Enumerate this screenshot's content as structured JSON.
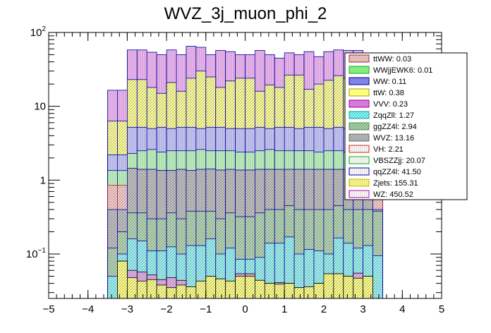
{
  "chart_data": {
    "type": "bar",
    "stacked": true,
    "title": "WVZ_3j_muon_phi_2",
    "xlabel": "",
    "ylabel": "",
    "yscale": "log",
    "xlim": [
      -5,
      5
    ],
    "ylim": [
      0.025,
      100
    ],
    "x_ticks": [
      "−5",
      "−4",
      "−3",
      "−2",
      "−1",
      "0",
      "1",
      "2",
      "3",
      "4",
      "5"
    ],
    "y_ticks": [
      {
        "value": 0.1,
        "base": "10",
        "exp": "−1"
      },
      {
        "value": 1,
        "label": "1"
      },
      {
        "value": 10,
        "label": "10"
      },
      {
        "value": 100,
        "base": "10",
        "exp": "2"
      }
    ],
    "legend_position": "top-right",
    "bin_edges": [
      -3.5,
      -3.25,
      -3.0,
      -2.75,
      -2.5,
      -2.25,
      -2.0,
      -1.75,
      -1.5,
      -1.25,
      -1.0,
      -0.75,
      -0.5,
      -0.25,
      0.0,
      0.25,
      0.5,
      0.75,
      1.0,
      1.25,
      1.5,
      1.75,
      2.0,
      2.25,
      2.5,
      2.75,
      3.0,
      3.25,
      3.5
    ],
    "stack_tops": [
      {
        "name": "Zjets",
        "values": [
          0.0,
          0.08,
          0.048,
          0.043,
          0.045,
          0.038,
          0.035,
          0.038,
          0.036,
          0.043,
          0.05,
          0.046,
          0.043,
          0.05,
          0.05,
          0.044,
          0.04,
          0.039,
          0.04,
          0.035,
          0.036,
          0.04,
          0.054,
          0.054,
          0.05,
          0.047,
          0.05,
          0.0
        ]
      },
      {
        "name": "VVV",
        "values": [
          0.0,
          0.08,
          0.06,
          0.057,
          0.052,
          0.045,
          0.048,
          0.044,
          0.036,
          0.043,
          0.05,
          0.046,
          0.043,
          0.054,
          0.054,
          0.044,
          0.04,
          0.041,
          0.04,
          0.035,
          0.036,
          0.04,
          0.054,
          0.054,
          0.05,
          0.055,
          0.05,
          0.0
        ]
      },
      {
        "name": "ZqqZll",
        "values": [
          0.05,
          0.1,
          0.16,
          0.15,
          0.11,
          0.11,
          0.125,
          0.1,
          0.13,
          0.13,
          0.16,
          0.1,
          0.12,
          0.085,
          0.085,
          0.09,
          0.14,
          0.14,
          0.17,
          0.1,
          0.115,
          0.11,
          0.1,
          0.165,
          0.14,
          0.12,
          0.13,
          0.095
        ]
      },
      {
        "name": "ggZZ4l",
        "values": [
          0.12,
          0.2,
          0.36,
          0.36,
          0.3,
          0.3,
          0.36,
          0.3,
          0.38,
          0.38,
          0.38,
          0.3,
          0.36,
          0.32,
          0.32,
          0.36,
          0.4,
          0.4,
          0.45,
          0.4,
          0.4,
          0.4,
          0.4,
          0.45,
          0.4,
          0.4,
          0.4,
          0.38
        ]
      },
      {
        "name": "WVZ",
        "values": [
          0.4,
          0.4,
          1.45,
          1.4,
          1.4,
          1.35,
          1.35,
          1.4,
          1.35,
          1.4,
          1.42,
          1.37,
          1.4,
          1.37,
          1.37,
          1.4,
          1.4,
          1.4,
          1.4,
          1.4,
          1.4,
          1.4,
          1.4,
          1.4,
          1.4,
          1.4,
          1.35,
          0.4
        ]
      },
      {
        "name": "VH",
        "values": [
          0.85,
          0.85,
          1.45,
          1.4,
          1.4,
          1.35,
          1.35,
          1.4,
          1.35,
          1.4,
          1.42,
          1.37,
          1.4,
          1.37,
          1.37,
          1.4,
          1.4,
          1.4,
          1.4,
          1.4,
          1.4,
          1.4,
          1.4,
          1.4,
          1.4,
          1.4,
          1.35,
          0.85
        ]
      },
      {
        "name": "VBSZZjj",
        "values": [
          1.35,
          1.35,
          2.3,
          2.5,
          2.6,
          2.4,
          2.5,
          2.5,
          2.5,
          2.6,
          2.5,
          2.5,
          2.5,
          2.4,
          2.4,
          2.5,
          2.6,
          2.5,
          2.5,
          2.5,
          2.5,
          2.4,
          2.5,
          2.5,
          2.4,
          2.5,
          2.4,
          1.35
        ]
      },
      {
        "name": "qqZZ4l",
        "values": [
          2.2,
          2.2,
          5.2,
          5.2,
          5.0,
          5.2,
          5.0,
          5.2,
          5.2,
          5.0,
          5.2,
          5.2,
          5.0,
          5.0,
          5.0,
          5.2,
          5.0,
          5.2,
          5.2,
          5.0,
          5.2,
          5.2,
          5.0,
          5.2,
          5.0,
          5.2,
          5.2,
          2.2
        ]
      },
      {
        "name": "Zjets",
        "values": [
          6.3,
          6.3,
          23.0,
          23.0,
          18.0,
          15.0,
          21.0,
          16.0,
          24.0,
          30.0,
          25.0,
          18.0,
          22.0,
          24.0,
          24.0,
          16.0,
          19.5,
          18.0,
          26.5,
          26.5,
          17.0,
          20.0,
          22.5,
          26.0,
          24.0,
          19.0,
          19.0,
          6.3
        ]
      },
      {
        "name": "WZ",
        "values": [
          16.5,
          16.5,
          58.0,
          58.0,
          54.0,
          50.0,
          58.0,
          50.0,
          65.0,
          63.0,
          50.0,
          57.0,
          55.0,
          50.0,
          50.0,
          57.0,
          50.0,
          45.0,
          53.0,
          50.0,
          55.0,
          47.0,
          55.0,
          58.0,
          57.0,
          57.0,
          48.0,
          16.5
        ]
      }
    ],
    "top_edge_outline": [
      1.35,
      1.35,
      2.3,
      2.5,
      2.6,
      2.4,
      2.5,
      2.5,
      2.5,
      2.6,
      2.5,
      2.5,
      2.5,
      2.4,
      2.4,
      2.5,
      2.6,
      2.5,
      2.5,
      2.5,
      2.5,
      2.4,
      2.5,
      2.5,
      2.4,
      2.5,
      2.4,
      1.35
    ],
    "legend": [
      {
        "label": "ttWW: 0.03",
        "fill": "#ffd0d0",
        "stroke": "#a03030",
        "pattern": "diag"
      },
      {
        "label": "WWjjEWK6: 0.01",
        "fill": "#80ee80",
        "stroke": "#20a020",
        "pattern": "solid"
      },
      {
        "label": "WW: 0.11",
        "fill": "#9090ff",
        "stroke": "#0000a0",
        "pattern": "diag"
      },
      {
        "label": "ttW: 0.38",
        "fill": "#ffff80",
        "stroke": "#a0a000",
        "pattern": "solid"
      },
      {
        "label": "VVV: 0.23",
        "fill": "#ee88ee",
        "stroke": "#a000a0",
        "pattern": "diag"
      },
      {
        "label": "ZqqZll: 1.27",
        "fill": "#80ffff",
        "stroke": "#20a0a0",
        "pattern": "diag"
      },
      {
        "label": "ggZZ4l: 2.94",
        "fill": "#a8d8a8",
        "stroke": "#609060",
        "pattern": "diag"
      },
      {
        "label": "WVZ: 13.16",
        "fill": "#c0c0c0",
        "stroke": "#707070",
        "pattern": "diag"
      },
      {
        "label": "VH: 2.21",
        "fill": "#ffffff",
        "stroke": "#e02020",
        "pattern": "vert"
      },
      {
        "label": "VBSZZjj: 20.07",
        "fill": "#ffffff",
        "stroke": "#00c000",
        "pattern": "vert"
      },
      {
        "label": "qqZZ4l: 41.50",
        "fill": "#ffffff",
        "stroke": "#0000c0",
        "pattern": "vert"
      },
      {
        "label": "Zjets: 155.31",
        "fill": "#ffff90",
        "stroke": "#c0c000",
        "pattern": "horiz"
      },
      {
        "label": "WZ: 450.52",
        "fill": "#ffffff",
        "stroke": "#c000c0",
        "pattern": "vert"
      }
    ],
    "layer_styles": {
      "Zjets_bottom": {
        "fill": "#ffff90",
        "stroke": "#000000"
      },
      "VVV": {
        "fill": "#e8b4f0",
        "stroke": "#000000"
      },
      "ZqqZll": {
        "fill": "#a0f4f4",
        "stroke": "#0000a0"
      },
      "ggZZ4l": {
        "fill": "#b8d8b8",
        "stroke": "#0000a0"
      },
      "WVZ": {
        "fill": "#c4c4c4",
        "stroke": "#0000a0"
      },
      "VH": {
        "fill": "#f8d0d0",
        "stroke": "#c02020"
      },
      "VBSZZjj": {
        "fill": "#c0f4c0",
        "stroke": "#0000a0"
      },
      "qqZZ4l": {
        "fill": "#c8c8f8",
        "stroke": "#0000a0"
      },
      "Zjets": {
        "fill": "#ffffa0",
        "stroke": "#0000a0"
      },
      "WZ": {
        "fill": "#f0b8f4",
        "stroke": "#0000a0"
      }
    }
  }
}
